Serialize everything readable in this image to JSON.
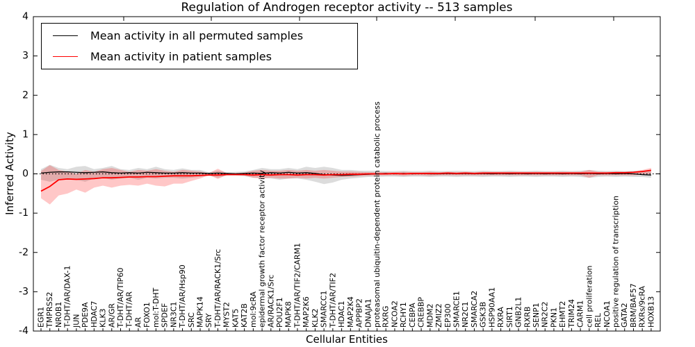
{
  "chart_data": {
    "type": "line",
    "title": "Regulation of Androgen receptor activity -- 513 samples",
    "xlabel": "Cellular Entities",
    "ylabel": "Inferred Activity",
    "ylim": [
      -4,
      4
    ],
    "yticks": [
      4,
      3,
      2,
      1,
      0,
      -1,
      -2,
      -3,
      -4
    ],
    "background_color": "#ffffff",
    "grid": false,
    "legend_position": "upper left",
    "zero_line": {
      "style": "dotted",
      "color": "#000000",
      "y": 0
    },
    "categories": [
      "EGR1",
      "TMPRSS2",
      "NR0B1",
      "T-DHT/AR/DAX-1",
      "JUN",
      "PDE9A",
      "HDAC7",
      "KLK3",
      "AR/GR",
      "T-DHT/AR/TIP60",
      "T-DHT/AR",
      "AR",
      "FOXO1",
      "mol:T-DHT",
      "SPDEF",
      "NR3C1",
      "T-DHT/AR/Hsp90",
      "SRC",
      "MAPK14",
      "SRY",
      "T-DHT/AR/RACK1/Src",
      "MYST2",
      "KAT5",
      "KAT2B",
      "mol:9cRA",
      "epidermal growth factor receptor activity",
      "AR/RACK1/Src",
      "POU2F1",
      "MAPK8",
      "T-DHT/AR/TIF2/CARM1",
      "MAP2K6",
      "KLK2",
      "SMARCC1",
      "T-DHT/AR/TIF2",
      "HDAC1",
      "MAP2K4",
      "APPBP2",
      "DNAJA1",
      "proteasomal ubiquitin-dependent protein catabolic process",
      "RXRG",
      "NCOA2",
      "RCHY1",
      "CEBPA",
      "CREBBP",
      "MDM2",
      "ZMIZ2",
      "EP300",
      "SMARCE1",
      "NR2C1",
      "SMARCA2",
      "GSK3B",
      "HSP90AA1",
      "RXRA",
      "SIRT1",
      "GNB2L1",
      "RXRB",
      "SENP1",
      "NR2C2",
      "PKN1",
      "EHMT2",
      "TRIM24",
      "CARM1",
      "cell proliferation",
      "REL",
      "NCOA1",
      "positive regulation of transcription",
      "GATA2",
      "BRM/BAF57",
      "RXRs/9cRA",
      "HOXB13"
    ],
    "series": [
      {
        "name": "Mean activity in all permuted samples",
        "color": "#000000",
        "values": [
          0.02,
          0.04,
          0.05,
          0.05,
          0.04,
          0.03,
          0.04,
          0.05,
          0.03,
          0.02,
          0.03,
          0.02,
          0.04,
          0.03,
          0.02,
          0.02,
          0.03,
          0.02,
          0.02,
          0.01,
          0.02,
          0.01,
          0,
          0.01,
          0.02,
          0.01,
          0.03,
          0.02,
          0.04,
          0.02,
          0.03,
          0.01,
          -0.02,
          -0.03,
          -0.04,
          -0.03,
          -0.02,
          -0.01,
          0,
          0.01,
          0,
          0.01,
          0,
          0.01,
          0,
          0,
          0.01,
          0,
          0.01,
          0,
          0.01,
          0,
          0.01,
          0,
          0.01,
          0,
          0.01,
          0,
          0.01,
          0,
          0.01,
          0,
          0.01,
          0,
          0.01,
          0,
          0.01,
          0,
          -0.02,
          -0.03
        ]
      },
      {
        "name": "Mean activity in patient samples",
        "color": "#ff0000",
        "values": [
          -0.44,
          -0.32,
          -0.15,
          -0.13,
          -0.14,
          -0.13,
          -0.12,
          -0.1,
          -0.1,
          -0.09,
          -0.08,
          -0.08,
          -0.07,
          -0.07,
          -0.06,
          -0.05,
          -0.05,
          -0.05,
          -0.04,
          -0.03,
          -0.03,
          -0.02,
          -0.02,
          -0.02,
          -0.03,
          -0.02,
          -0.03,
          -0.02,
          -0.02,
          -0.03,
          -0.02,
          -0.02,
          -0.03,
          -0.02,
          -0.02,
          -0.01,
          -0.01,
          0,
          0,
          0,
          0.01,
          0,
          0.01,
          0.01,
          0.01,
          0.01,
          0.02,
          0.01,
          0.02,
          0.01,
          0.02,
          0.02,
          0.02,
          0.02,
          0.02,
          0.02,
          0.02,
          0.02,
          0.02,
          0.02,
          0.02,
          0.02,
          0.02,
          0.02,
          0.02,
          0.03,
          0.03,
          0.04,
          0.06,
          0.09
        ]
      }
    ],
    "bands": [
      {
        "name": "permuted samples range",
        "color": "#808080",
        "opacity": 0.28,
        "lo": [
          -0.15,
          -0.2,
          -0.15,
          -0.12,
          -0.15,
          -0.2,
          -0.12,
          -0.1,
          -0.15,
          -0.12,
          -0.1,
          -0.15,
          -0.1,
          -0.12,
          -0.1,
          -0.1,
          -0.12,
          -0.1,
          -0.08,
          -0.04,
          -0.1,
          -0.04,
          -0.04,
          -0.06,
          -0.1,
          -0.1,
          -0.12,
          -0.15,
          -0.12,
          -0.12,
          -0.15,
          -0.2,
          -0.26,
          -0.22,
          -0.15,
          -0.12,
          -0.1,
          -0.08,
          -0.08,
          -0.07,
          -0.07,
          -0.08,
          -0.07,
          -0.07,
          -0.08,
          -0.07,
          -0.07,
          -0.08,
          -0.07,
          -0.07,
          -0.08,
          -0.07,
          -0.07,
          -0.08,
          -0.07,
          -0.07,
          -0.08,
          -0.07,
          -0.07,
          -0.08,
          -0.07,
          -0.08,
          -0.1,
          -0.08,
          -0.07,
          -0.08,
          -0.07,
          -0.08,
          -0.08,
          -0.1
        ],
        "hi": [
          0.12,
          0.23,
          0.15,
          0.12,
          0.18,
          0.2,
          0.12,
          0.15,
          0.2,
          0.12,
          0.1,
          0.15,
          0.12,
          0.18,
          0.12,
          0.1,
          0.14,
          0.1,
          0.1,
          0.04,
          0.08,
          0.04,
          0.05,
          0.06,
          0.1,
          0.15,
          0.12,
          0.12,
          0.15,
          0.12,
          0.18,
          0.15,
          0.18,
          0.15,
          0.1,
          0.1,
          0.08,
          0.08,
          0.08,
          0.07,
          0.07,
          0.08,
          0.07,
          0.07,
          0.08,
          0.07,
          0.07,
          0.08,
          0.07,
          0.07,
          0.08,
          0.07,
          0.07,
          0.08,
          0.07,
          0.07,
          0.08,
          0.07,
          0.07,
          0.08,
          0.07,
          0.08,
          0.1,
          0.08,
          0.07,
          0.08,
          0.07,
          0.08,
          0.08,
          0.1
        ]
      },
      {
        "name": "patient samples range",
        "color": "#ff0000",
        "opacity": 0.22,
        "lo": [
          -0.62,
          -0.78,
          -0.55,
          -0.5,
          -0.4,
          -0.48,
          -0.35,
          -0.3,
          -0.35,
          -0.3,
          -0.28,
          -0.3,
          -0.25,
          -0.3,
          -0.32,
          -0.25,
          -0.25,
          -0.18,
          -0.12,
          -0.03,
          -0.13,
          -0.03,
          -0.03,
          -0.04,
          -0.1,
          -0.12,
          -0.1,
          -0.12,
          -0.12,
          -0.1,
          -0.12,
          -0.1,
          -0.12,
          -0.1,
          -0.08,
          -0.08,
          -0.06,
          -0.05,
          -0.04,
          -0.04,
          -0.04,
          -0.05,
          -0.04,
          -0.04,
          -0.05,
          -0.04,
          -0.04,
          -0.04,
          -0.04,
          -0.04,
          -0.04,
          -0.04,
          -0.04,
          -0.04,
          -0.04,
          -0.04,
          -0.04,
          -0.04,
          -0.04,
          -0.04,
          -0.04,
          -0.04,
          -0.1,
          -0.04,
          -0.04,
          -0.04,
          -0.04,
          -0.04,
          -0.02,
          0
        ],
        "hi": [
          0.07,
          0.22,
          0.1,
          0.05,
          0,
          0.1,
          0.05,
          0.12,
          0.15,
          0.1,
          0.05,
          0.1,
          0.08,
          0.12,
          0.08,
          0.05,
          0.1,
          0.08,
          0.06,
          0.02,
          0.13,
          0.02,
          0.02,
          0.03,
          0.08,
          0.1,
          0.08,
          0.08,
          0.1,
          0.08,
          0.1,
          0.08,
          0.1,
          0.08,
          0.06,
          0.06,
          0.05,
          0.04,
          0.04,
          0.04,
          0.04,
          0.05,
          0.04,
          0.04,
          0.05,
          0.04,
          0.05,
          0.04,
          0.05,
          0.04,
          0.05,
          0.05,
          0.05,
          0.05,
          0.05,
          0.05,
          0.05,
          0.05,
          0.05,
          0.05,
          0.05,
          0.05,
          0.1,
          0.05,
          0.05,
          0.05,
          0.05,
          0.06,
          0.1,
          0.15
        ]
      }
    ]
  }
}
